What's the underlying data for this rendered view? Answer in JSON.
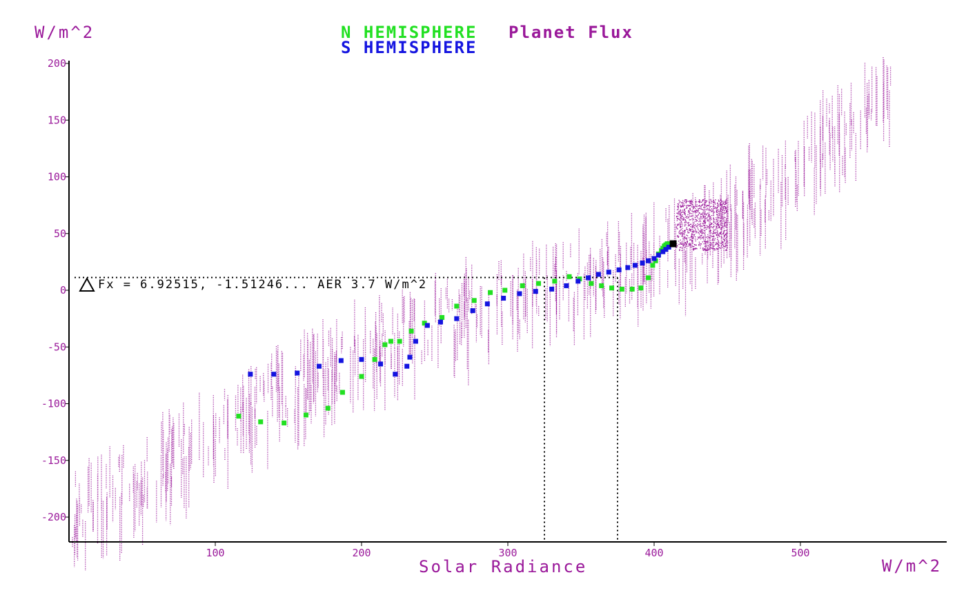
{
  "chart_data": {
    "type": "scatter",
    "y_unit_label": "W/m^2",
    "x_unit_label": "W/m^2",
    "xlabel": "Solar Radiance",
    "legend": [
      {
        "name": "N HEMISPHERE",
        "color": "#22e022"
      },
      {
        "name": "S HEMISPHERE",
        "color": "#1414e0"
      }
    ],
    "title": "Planet Flux",
    "annotation": "Fx = 6.92515, -1.51246... AER 3.7 W/m^2",
    "xlim": [
      0,
      600
    ],
    "ylim": [
      -225,
      210
    ],
    "xticks": [
      100,
      200,
      300,
      400,
      500
    ],
    "yticks": [
      200,
      150,
      100,
      50,
      0,
      -50,
      -100,
      -150,
      -200
    ],
    "reference_lines": {
      "y": 10,
      "x": [
        325,
        375
      ]
    },
    "cloud_color": "#9a189a",
    "series": [
      {
        "name": "N HEMISPHERE",
        "points": [
          [
            116,
            -111
          ],
          [
            131,
            -116
          ],
          [
            147,
            -117
          ],
          [
            162,
            -110
          ],
          [
            177,
            -104
          ],
          [
            187,
            -90
          ],
          [
            200,
            -76
          ],
          [
            209,
            -61
          ],
          [
            216,
            -48
          ],
          [
            220,
            -45
          ],
          [
            226,
            -45
          ],
          [
            234,
            -36
          ],
          [
            243,
            -29
          ],
          [
            255,
            -24
          ],
          [
            265,
            -14
          ],
          [
            277,
            -9
          ],
          [
            288,
            -2
          ],
          [
            298,
            0
          ],
          [
            310,
            4
          ],
          [
            321,
            6
          ],
          [
            332,
            8
          ],
          [
            342,
            12
          ],
          [
            349,
            10
          ],
          [
            357,
            6
          ],
          [
            364,
            4
          ],
          [
            371,
            2
          ],
          [
            378,
            1
          ],
          [
            385,
            1
          ],
          [
            391,
            2
          ],
          [
            396,
            11
          ],
          [
            399,
            22
          ],
          [
            401,
            26
          ],
          [
            403,
            32
          ],
          [
            405,
            35
          ],
          [
            406,
            37
          ],
          [
            407,
            39
          ],
          [
            408,
            40
          ],
          [
            409,
            41
          ]
        ]
      },
      {
        "name": "S HEMISPHERE",
        "points": [
          [
            124,
            -74
          ],
          [
            140,
            -74
          ],
          [
            156,
            -73
          ],
          [
            171,
            -67
          ],
          [
            186,
            -62
          ],
          [
            200,
            -61
          ],
          [
            213,
            -65
          ],
          [
            223,
            -74
          ],
          [
            231,
            -67
          ],
          [
            233,
            -59
          ],
          [
            237,
            -45
          ],
          [
            245,
            -31
          ],
          [
            254,
            -28
          ],
          [
            265,
            -25
          ],
          [
            276,
            -18
          ],
          [
            286,
            -12
          ],
          [
            297,
            -7
          ],
          [
            308,
            -3
          ],
          [
            319,
            -1
          ],
          [
            330,
            1
          ],
          [
            340,
            4
          ],
          [
            348,
            8
          ],
          [
            355,
            11
          ],
          [
            362,
            14
          ],
          [
            369,
            16
          ],
          [
            376,
            18
          ],
          [
            382,
            20
          ],
          [
            387,
            22
          ],
          [
            392,
            24
          ],
          [
            396,
            26
          ],
          [
            400,
            28
          ],
          [
            403,
            31
          ],
          [
            406,
            34
          ],
          [
            408,
            36
          ],
          [
            410,
            38
          ]
        ]
      }
    ],
    "current_point": [
      413,
      41
    ]
  }
}
